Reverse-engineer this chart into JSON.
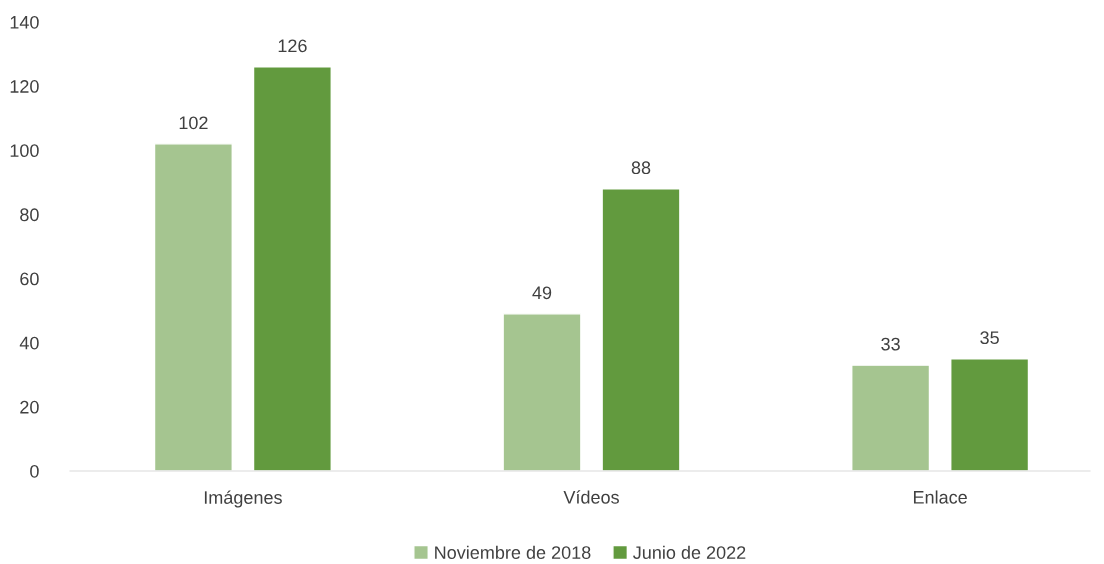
{
  "chart_data": {
    "type": "bar",
    "categories": [
      "Imágenes",
      "Vídeos",
      "Enlace"
    ],
    "series": [
      {
        "name": "Noviembre de 2018",
        "color": "#a5c590",
        "values": [
          102,
          49,
          33
        ]
      },
      {
        "name": "Junio de 2022",
        "color": "#629a3e",
        "values": [
          126,
          88,
          35
        ]
      }
    ],
    "ylim": [
      0,
      140
    ],
    "yticks": [
      0,
      20,
      40,
      60,
      80,
      100,
      120,
      140
    ],
    "grid": false,
    "legend": "bottom",
    "data_labels": true
  }
}
